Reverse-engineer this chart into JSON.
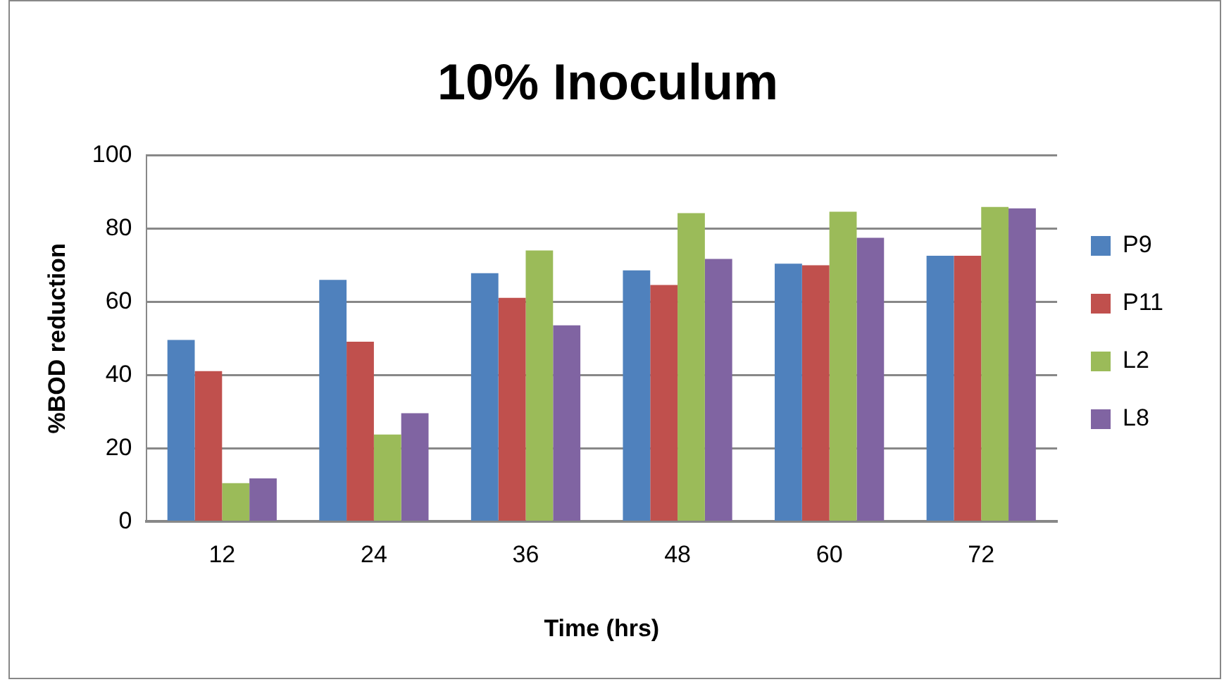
{
  "chart_data": {
    "type": "bar",
    "title": "10% Inoculum",
    "xlabel": "Time (hrs)",
    "ylabel": "%BOD reduction",
    "categories": [
      "12",
      "24",
      "36",
      "48",
      "60",
      "72"
    ],
    "series": [
      {
        "name": "P9",
        "color": "#4f81bd",
        "values": [
          49.6,
          66,
          67.8,
          68.6,
          70.4,
          72.6
        ]
      },
      {
        "name": "P11",
        "color": "#c0504d",
        "values": [
          41.1,
          49.1,
          61.1,
          64.6,
          70,
          72.6
        ]
      },
      {
        "name": "L2",
        "color": "#9bbb59",
        "values": [
          10.5,
          23.8,
          74,
          84.2,
          84.6,
          85.9
        ]
      },
      {
        "name": "L8",
        "color": "#8064a2",
        "values": [
          11.8,
          29.6,
          53.6,
          71.7,
          77.5,
          85.5
        ]
      }
    ],
    "ylim": [
      0,
      100
    ],
    "yticks": [
      0,
      20,
      40,
      60,
      80,
      100
    ],
    "grid": "y",
    "legend": "right"
  }
}
